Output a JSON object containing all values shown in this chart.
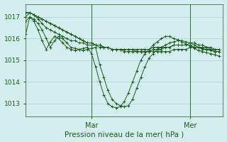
{
  "background_color": "#d4eef0",
  "grid_color": "#a8cfd4",
  "line_color": "#1a5c1a",
  "xlabel": "Pression niveau de la mer( hPa )",
  "xlabel_fontsize": 7.5,
  "yticks": [
    1013,
    1014,
    1015,
    1016,
    1017
  ],
  "ytick_fontsize": 6.5,
  "xtick_fontsize": 7,
  "xlim": [
    0,
    48
  ],
  "ylim": [
    1012.4,
    1017.6
  ],
  "mar_x": 16,
  "mer_x": 40,
  "series": [
    [
      1017.0,
      1017.2,
      1017.1,
      1016.9,
      1016.7,
      1016.5,
      1016.4,
      1016.3,
      1016.2,
      1016.1,
      1016.0,
      1015.9,
      1015.9,
      1015.8,
      1015.8,
      1015.7,
      1015.7,
      1015.7,
      1015.6,
      1015.6,
      1015.6,
      1015.5,
      1015.5,
      1015.5,
      1015.5,
      1015.5,
      1015.5,
      1015.4,
      1015.4,
      1015.4,
      1015.4,
      1015.4,
      1015.4,
      1015.4,
      1015.4,
      1015.4,
      1015.5,
      1015.5,
      1015.5,
      1015.5,
      1015.6,
      1015.6,
      1015.6,
      1015.5,
      1015.5,
      1015.5,
      1015.4,
      1015.4
    ],
    [
      1017.2,
      1017.2,
      1017.1,
      1017.0,
      1016.9,
      1016.8,
      1016.7,
      1016.6,
      1016.5,
      1016.4,
      1016.3,
      1016.2,
      1016.1,
      1016.0,
      1015.9,
      1015.8,
      1015.8,
      1015.7,
      1015.7,
      1015.6,
      1015.6,
      1015.5,
      1015.5,
      1015.5,
      1015.5,
      1015.5,
      1015.5,
      1015.5,
      1015.5,
      1015.5,
      1015.5,
      1015.6,
      1015.6,
      1015.6,
      1015.6,
      1015.6,
      1015.7,
      1015.7,
      1015.7,
      1015.7,
      1015.7,
      1015.6,
      1015.6,
      1015.6,
      1015.6,
      1015.5,
      1015.5,
      1015.5
    ],
    [
      1017.2,
      1017.2,
      1017.1,
      1017.0,
      1016.9,
      1016.8,
      1016.7,
      1016.6,
      1016.5,
      1016.4,
      1016.3,
      1016.2,
      1016.1,
      1016.0,
      1015.9,
      1015.8,
      1015.8,
      1015.7,
      1015.7,
      1015.6,
      1015.6,
      1015.5,
      1015.5,
      1015.5,
      1015.4,
      1015.4,
      1015.4,
      1015.4,
      1015.4,
      1015.4,
      1015.4,
      1015.5,
      1015.5,
      1015.5,
      1015.6,
      1015.6,
      1015.7,
      1015.7,
      1015.7,
      1015.7,
      1015.8,
      1015.8,
      1015.7,
      1015.7,
      1015.6,
      1015.6,
      1015.5,
      1015.5
    ],
    [
      1016.8,
      1017.0,
      1016.9,
      1016.7,
      1016.4,
      1016.0,
      1015.6,
      1015.9,
      1016.1,
      1016.0,
      1015.8,
      1015.6,
      1015.55,
      1015.5,
      1015.45,
      1015.5,
      1015.55,
      1015.6,
      1014.8,
      1014.2,
      1013.6,
      1013.2,
      1013.0,
      1012.9,
      1012.85,
      1012.9,
      1013.2,
      1013.7,
      1014.2,
      1014.7,
      1015.1,
      1015.3,
      1015.5,
      1015.6,
      1015.7,
      1015.8,
      1015.85,
      1015.9,
      1015.9,
      1015.85,
      1015.8,
      1015.7,
      1015.6,
      1015.55,
      1015.5,
      1015.45,
      1015.4,
      1015.4
    ],
    [
      1016.2,
      1017.0,
      1016.8,
      1016.4,
      1015.9,
      1015.5,
      1015.85,
      1016.1,
      1016.0,
      1015.8,
      1015.6,
      1015.5,
      1015.45,
      1015.5,
      1015.55,
      1015.6,
      1015.3,
      1014.7,
      1014.0,
      1013.4,
      1013.0,
      1012.85,
      1012.8,
      1012.85,
      1013.1,
      1013.5,
      1014.0,
      1014.5,
      1015.0,
      1015.3,
      1015.5,
      1015.7,
      1015.85,
      1016.0,
      1016.1,
      1016.1,
      1016.0,
      1015.95,
      1015.85,
      1015.75,
      1015.65,
      1015.55,
      1015.45,
      1015.4,
      1015.35,
      1015.3,
      1015.25,
      1015.2
    ]
  ]
}
